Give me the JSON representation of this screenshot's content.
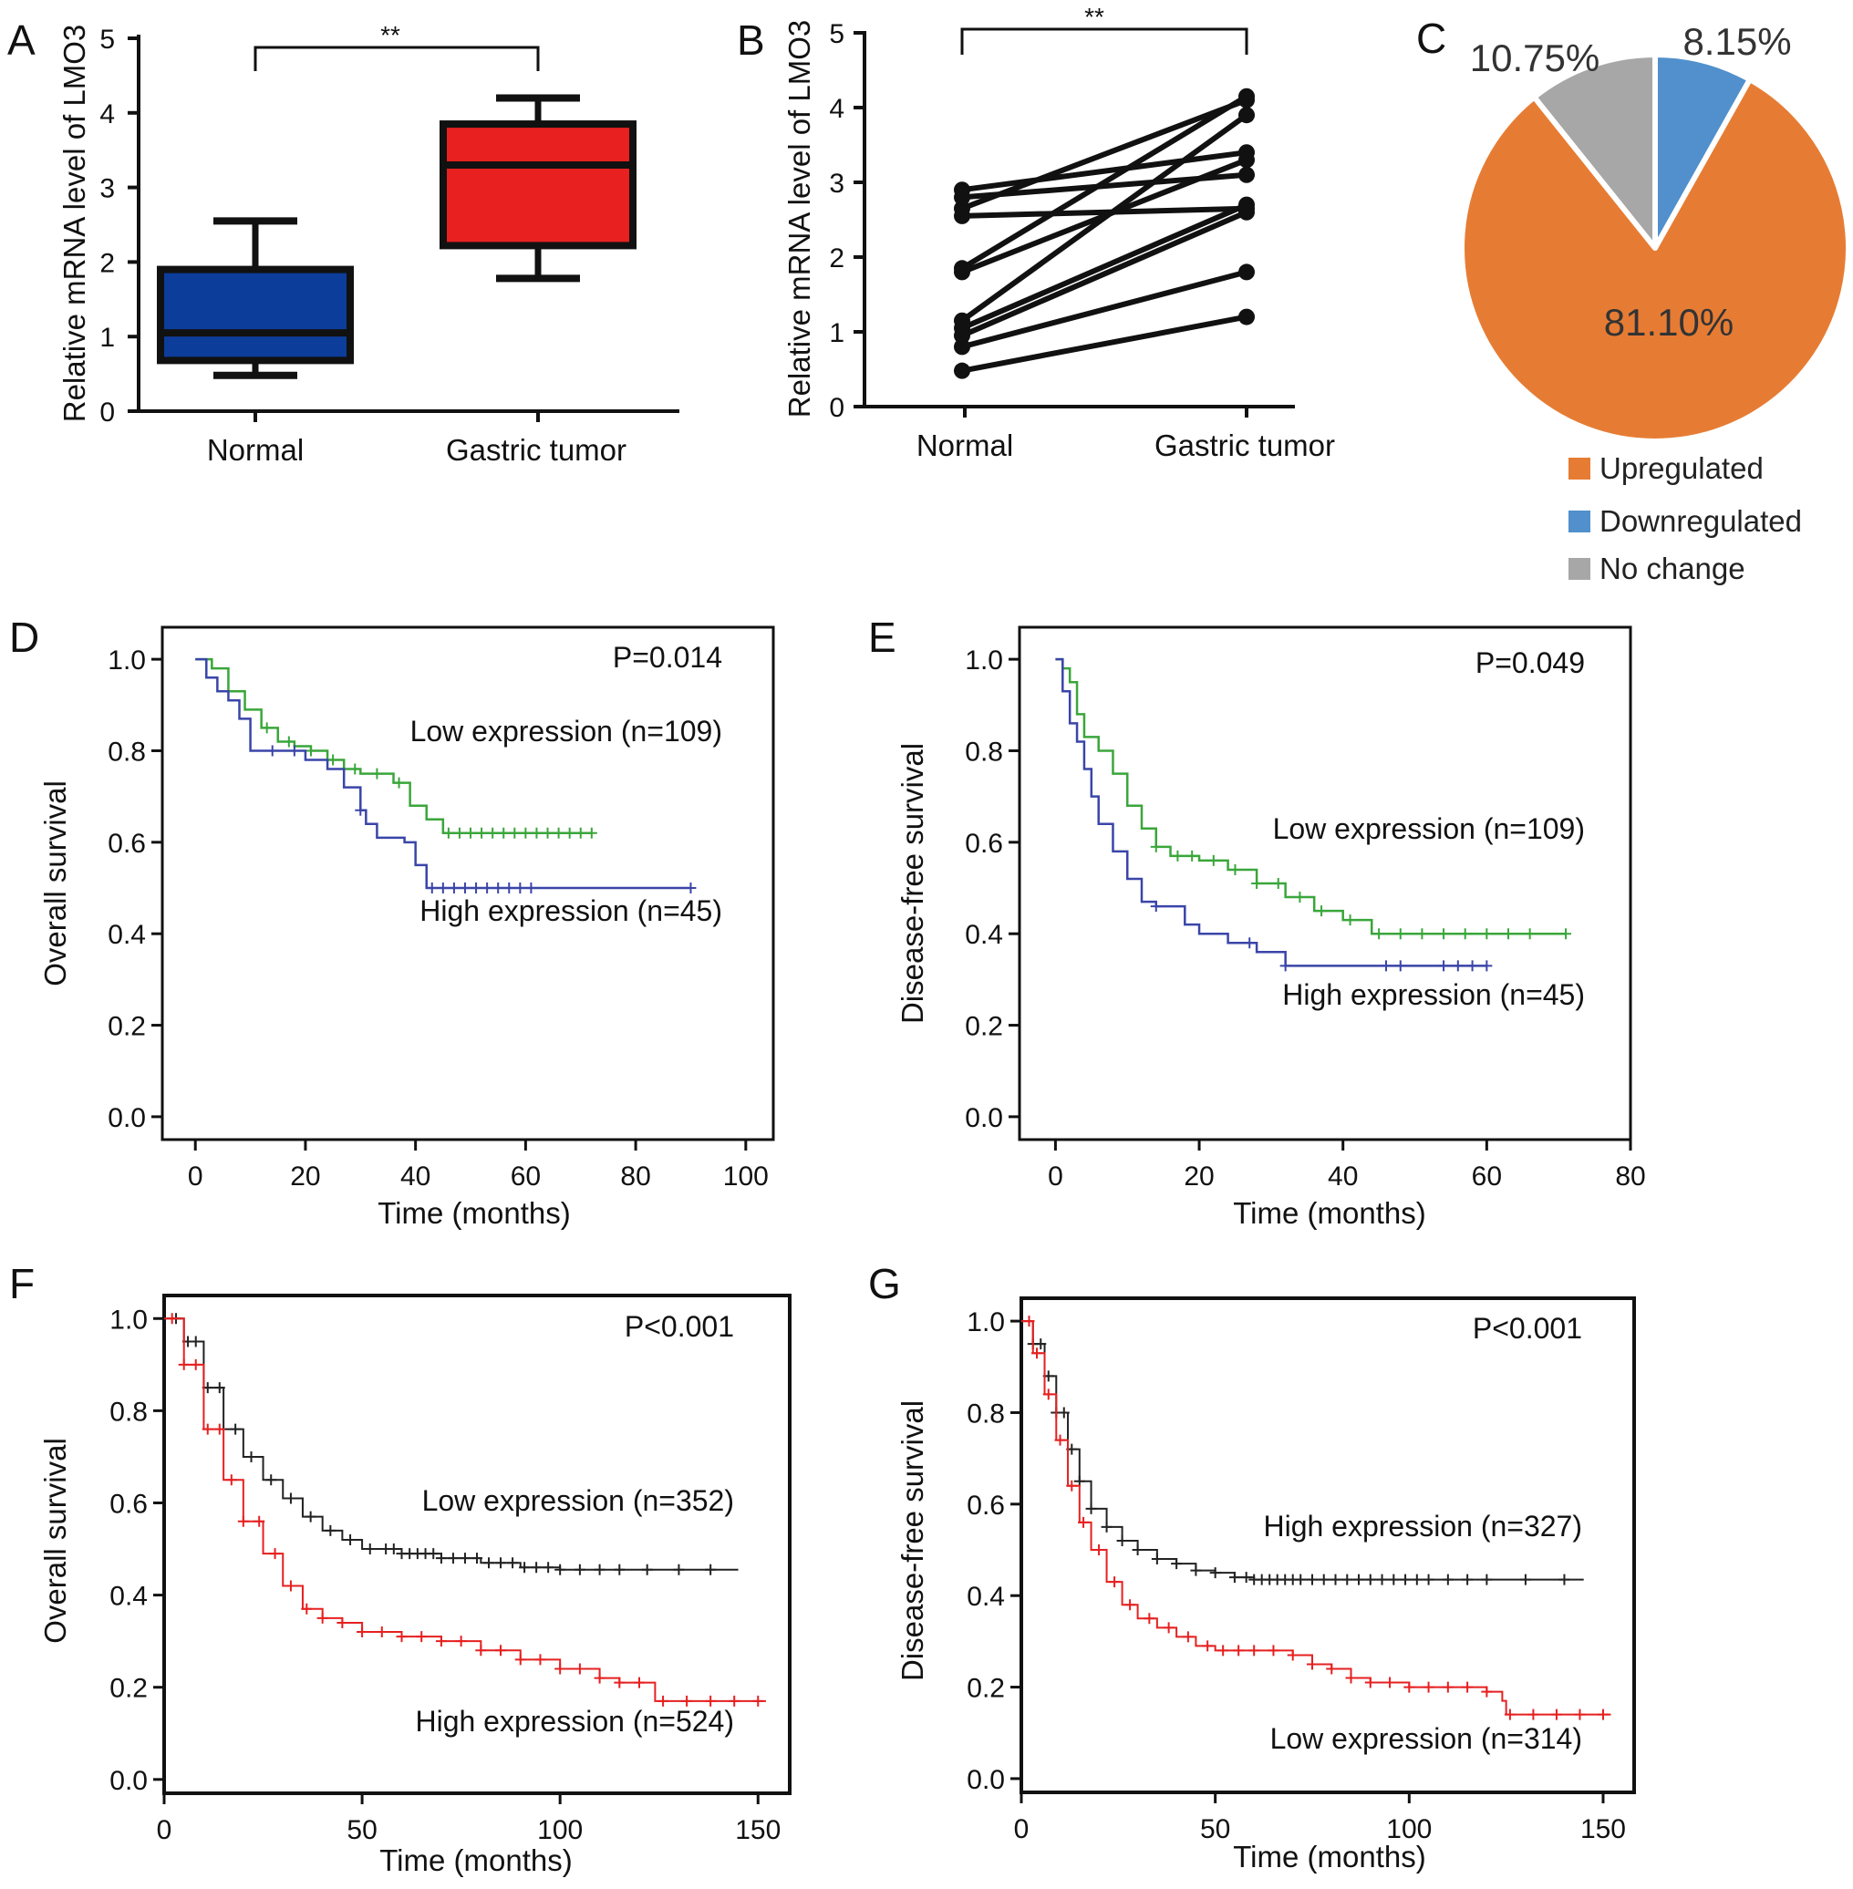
{
  "chart_data": [
    {
      "panel": "A",
      "type": "box",
      "ylabel": "Relative mRNA level of LMO3",
      "ylim": [
        0,
        5
      ],
      "yticks": [
        "0",
        "1",
        "2",
        "3",
        "4",
        "5"
      ],
      "categories": [
        "Normal",
        "Gastric tumor"
      ],
      "boxes": [
        {
          "name": "Normal",
          "min": 0.48,
          "q1": 0.68,
          "median": 1.05,
          "q3": 1.9,
          "max": 2.55,
          "color": "#0d3d9b"
        },
        {
          "name": "Gastric tumor",
          "min": 1.78,
          "q1": 2.22,
          "median": 3.3,
          "q3": 3.85,
          "max": 4.2,
          "color": "#e82020"
        }
      ],
      "significance": "**"
    },
    {
      "panel": "B",
      "type": "paired-line",
      "ylabel": "Relative mRNA level of LMO3",
      "ylim": [
        0,
        5
      ],
      "yticks": [
        "0",
        "1",
        "2",
        "3",
        "4",
        "5"
      ],
      "categories": [
        "Normal",
        "Gastric tumor"
      ],
      "pairs": [
        [
          0.48,
          1.2
        ],
        [
          0.8,
          1.8
        ],
        [
          0.95,
          2.6
        ],
        [
          1.05,
          2.7
        ],
        [
          1.15,
          3.9
        ],
        [
          1.8,
          3.3
        ],
        [
          1.85,
          4.15
        ],
        [
          2.55,
          2.65
        ],
        [
          2.65,
          4.1
        ],
        [
          2.8,
          3.1
        ],
        [
          2.9,
          3.4
        ]
      ],
      "significance": "**"
    },
    {
      "panel": "C",
      "type": "pie",
      "slices": [
        {
          "name": "Downregulated",
          "value": 8.15,
          "label": "8.15%",
          "color": "#5190cc"
        },
        {
          "name": "Upregulated",
          "value": 81.1,
          "label": "81.10%",
          "color": "#e67c34"
        },
        {
          "name": "No change",
          "value": 10.75,
          "label": "10.75%",
          "color": "#a7a7a7"
        }
      ],
      "legend": [
        "Upregulated",
        "Downregulated",
        "No change"
      ]
    },
    {
      "panel": "D",
      "type": "line",
      "xlabel": "Time (months)",
      "ylabel": "Overall survival",
      "xlim": [
        -6,
        105
      ],
      "ylim": [
        -0.05,
        1.07
      ],
      "xticks": [
        0,
        20,
        40,
        60,
        80,
        100
      ],
      "yticks": [
        "0.0",
        "0.2",
        "0.4",
        "0.6",
        "0.8",
        "1.0"
      ],
      "pvalue": "P=0.014",
      "series": [
        {
          "name": "Low expression (n=109)",
          "color": "#3aa63a",
          "x": [
            0,
            3,
            6,
            9,
            12,
            15,
            18,
            21,
            24,
            27,
            30,
            33,
            36,
            39,
            42,
            45,
            48,
            72
          ],
          "y": [
            1.0,
            0.98,
            0.93,
            0.89,
            0.85,
            0.82,
            0.81,
            0.8,
            0.78,
            0.76,
            0.75,
            0.75,
            0.73,
            0.68,
            0.65,
            0.62,
            0.62,
            0.62
          ],
          "censor_x": [
            13,
            17,
            21,
            25,
            29,
            33,
            37,
            46,
            48,
            50,
            52,
            54,
            56,
            58,
            60,
            62,
            64,
            66,
            68,
            70,
            72
          ]
        },
        {
          "name": "High expression (n=45)",
          "color": "#3a45a8",
          "x": [
            0,
            2,
            4,
            6,
            8,
            10,
            20,
            24,
            27,
            30,
            31,
            33,
            38,
            40,
            42,
            90
          ],
          "y": [
            1.0,
            0.96,
            0.93,
            0.91,
            0.87,
            0.8,
            0.78,
            0.76,
            0.72,
            0.67,
            0.64,
            0.61,
            0.6,
            0.55,
            0.5,
            0.5
          ],
          "censor_x": [
            14,
            18,
            30,
            43,
            45,
            47,
            49,
            51,
            53,
            55,
            57,
            59,
            61,
            90
          ]
        }
      ]
    },
    {
      "panel": "E",
      "type": "line",
      "xlabel": "Time (months)",
      "ylabel": "Disease-free survival",
      "xlim": [
        -5,
        80
      ],
      "ylim": [
        -0.05,
        1.07
      ],
      "xticks": [
        0,
        20,
        40,
        60,
        80
      ],
      "yticks": [
        "0.0",
        "0.2",
        "0.4",
        "0.6",
        "0.8",
        "1.0"
      ],
      "pvalue": "P=0.049",
      "series": [
        {
          "name": "Low expression (n=109)",
          "color": "#3aa63a",
          "x": [
            0,
            1,
            2,
            3,
            4,
            6,
            8,
            10,
            12,
            14,
            16,
            20,
            24,
            28,
            32,
            36,
            40,
            44,
            50,
            60,
            71
          ],
          "y": [
            1.0,
            0.98,
            0.95,
            0.88,
            0.83,
            0.8,
            0.75,
            0.68,
            0.63,
            0.59,
            0.57,
            0.56,
            0.54,
            0.51,
            0.48,
            0.45,
            0.43,
            0.4,
            0.4,
            0.4,
            0.4
          ],
          "censor_x": [
            14,
            17,
            19,
            22,
            25,
            28,
            31,
            34,
            37,
            41,
            45,
            48,
            51,
            54,
            57,
            60,
            63,
            66,
            71
          ]
        },
        {
          "name": "High expression (n=45)",
          "color": "#3a45a8",
          "x": [
            0,
            1,
            2,
            3,
            4,
            5,
            6,
            8,
            10,
            12,
            14,
            18,
            20,
            24,
            28,
            32,
            60
          ],
          "y": [
            1.0,
            0.93,
            0.86,
            0.82,
            0.76,
            0.7,
            0.64,
            0.58,
            0.52,
            0.47,
            0.46,
            0.42,
            0.4,
            0.38,
            0.36,
            0.33,
            0.33
          ],
          "censor_x": [
            14,
            27,
            32,
            46,
            48,
            54,
            56,
            58,
            60
          ]
        }
      ]
    },
    {
      "panel": "F",
      "type": "line",
      "xlabel": "Time (months)",
      "ylabel": "Overall survival",
      "xlim": [
        0,
        158
      ],
      "ylim": [
        -0.03,
        1.05
      ],
      "xticks": [
        0,
        50,
        100,
        150
      ],
      "yticks": [
        "0.0",
        "0.2",
        "0.4",
        "0.6",
        "0.8",
        "1.0"
      ],
      "pvalue": "P<0.001",
      "series": [
        {
          "name": "Low expression (n=352)",
          "color": "#222222",
          "x": [
            0,
            5,
            10,
            15,
            20,
            25,
            30,
            35,
            40,
            45,
            50,
            55,
            60,
            70,
            80,
            90,
            100,
            120,
            145
          ],
          "y": [
            1.0,
            0.95,
            0.85,
            0.76,
            0.7,
            0.65,
            0.61,
            0.57,
            0.54,
            0.52,
            0.5,
            0.5,
            0.49,
            0.48,
            0.47,
            0.46,
            0.455,
            0.455,
            0.455
          ],
          "censor_x": [
            3,
            6,
            8,
            11,
            14,
            18,
            22,
            27,
            32,
            37,
            42,
            47,
            52,
            56,
            58,
            60,
            62,
            64,
            66,
            68,
            70,
            73,
            76,
            79,
            82,
            85,
            88,
            91,
            94,
            97,
            100,
            105,
            110,
            115,
            122,
            130,
            138
          ]
        },
        {
          "name": "High expression (n=524)",
          "color": "#e62020",
          "x": [
            0,
            5,
            10,
            15,
            20,
            25,
            30,
            35,
            40,
            45,
            50,
            60,
            70,
            80,
            90,
            100,
            110,
            115,
            123,
            124,
            152
          ],
          "y": [
            1.0,
            0.9,
            0.76,
            0.65,
            0.56,
            0.49,
            0.42,
            0.37,
            0.35,
            0.34,
            0.32,
            0.31,
            0.3,
            0.28,
            0.26,
            0.24,
            0.22,
            0.21,
            0.21,
            0.17,
            0.17
          ],
          "censor_x": [
            2,
            5,
            8,
            11,
            14,
            17,
            20,
            24,
            28,
            32,
            36,
            40,
            45,
            50,
            55,
            60,
            65,
            70,
            75,
            80,
            85,
            90,
            95,
            100,
            105,
            110,
            115,
            120,
            126,
            132,
            138,
            144,
            150
          ]
        }
      ]
    },
    {
      "panel": "G",
      "type": "line",
      "xlabel": "Time (months)",
      "ylabel": "Disease-free survival",
      "xlim": [
        0,
        158
      ],
      "ylim": [
        -0.03,
        1.05
      ],
      "xticks": [
        0,
        50,
        100,
        150
      ],
      "yticks": [
        "0.0",
        "0.2",
        "0.4",
        "0.6",
        "0.8",
        "1.0"
      ],
      "pvalue": "P<0.001",
      "series": [
        {
          "name": "High expression (n=327)",
          "color": "#222222",
          "x": [
            0,
            3,
            6,
            9,
            12,
            15,
            18,
            22,
            26,
            30,
            35,
            40,
            45,
            50,
            55,
            60,
            80,
            100,
            145
          ],
          "y": [
            1.0,
            0.95,
            0.88,
            0.8,
            0.72,
            0.65,
            0.59,
            0.55,
            0.52,
            0.5,
            0.48,
            0.47,
            0.455,
            0.45,
            0.44,
            0.435,
            0.435,
            0.435,
            0.435
          ],
          "censor_x": [
            3,
            5,
            7,
            9,
            11,
            13,
            15,
            18,
            22,
            26,
            30,
            35,
            40,
            45,
            50,
            55,
            58,
            60,
            62,
            64,
            66,
            68,
            70,
            72,
            75,
            78,
            81,
            84,
            87,
            90,
            93,
            96,
            99,
            102,
            105,
            110,
            115,
            120,
            130,
            140
          ]
        },
        {
          "name": "Low expression (n=314)",
          "color": "#e62020",
          "x": [
            0,
            3,
            6,
            9,
            12,
            15,
            18,
            22,
            26,
            30,
            35,
            40,
            45,
            50,
            55,
            60,
            70,
            75,
            80,
            85,
            90,
            100,
            110,
            120,
            124,
            125,
            152
          ],
          "y": [
            1.0,
            0.93,
            0.84,
            0.74,
            0.64,
            0.56,
            0.5,
            0.43,
            0.38,
            0.35,
            0.33,
            0.31,
            0.29,
            0.28,
            0.28,
            0.28,
            0.27,
            0.25,
            0.24,
            0.22,
            0.21,
            0.2,
            0.2,
            0.19,
            0.17,
            0.14,
            0.14
          ],
          "censor_x": [
            2,
            4,
            7,
            10,
            13,
            16,
            20,
            24,
            28,
            33,
            38,
            43,
            48,
            52,
            56,
            60,
            65,
            70,
            75,
            80,
            85,
            90,
            95,
            100,
            105,
            110,
            115,
            120,
            126,
            132,
            138,
            144,
            150
          ]
        }
      ]
    }
  ]
}
